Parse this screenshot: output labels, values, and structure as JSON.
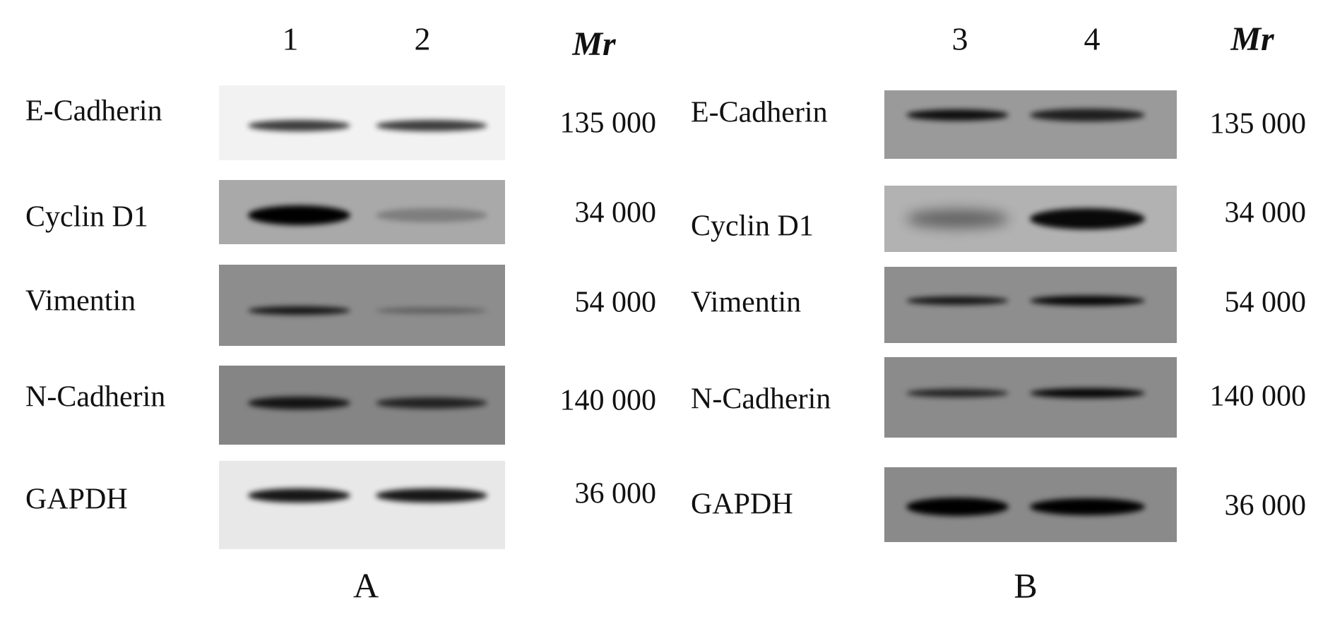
{
  "panels": [
    {
      "label": "A",
      "lanes": [
        "1",
        "2"
      ],
      "mr_header": "Mr",
      "rows": [
        {
          "protein": "E-Cadherin",
          "mr": "135 000"
        },
        {
          "protein": "Cyclin D1",
          "mr": "34 000"
        },
        {
          "protein": "Vimentin",
          "mr": "54 000"
        },
        {
          "protein": "N-Cadherin",
          "mr": "140 000"
        },
        {
          "protein": "GAPDH",
          "mr": "36 000"
        }
      ]
    },
    {
      "label": "B",
      "lanes": [
        "3",
        "4"
      ],
      "mr_header": "Mr",
      "rows": [
        {
          "protein": "E-Cadherin",
          "mr": "135 000"
        },
        {
          "protein": "Cyclin D1",
          "mr": "34 000"
        },
        {
          "protein": "Vimentin",
          "mr": "54 000"
        },
        {
          "protein": "N-Cadherin",
          "mr": "140 000"
        },
        {
          "protein": "GAPDH",
          "mr": "36 000"
        }
      ]
    }
  ]
}
